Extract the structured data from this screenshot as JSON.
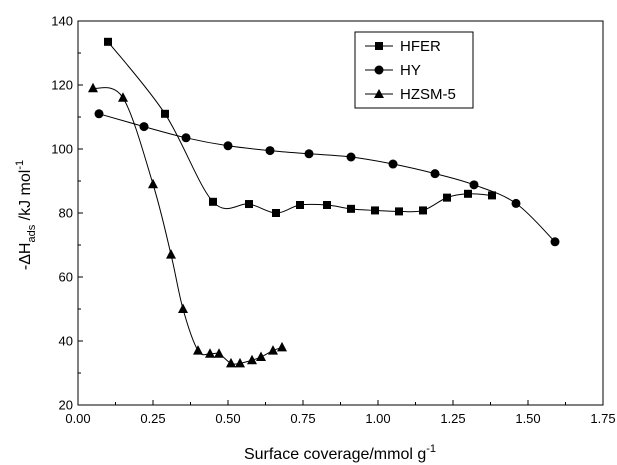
{
  "chart_data": {
    "type": "line",
    "xlabel": "Surface coverage/mmol g",
    "xlabel_sup": "-1",
    "ylabel": "-ΔH",
    "ylabel_sub": "ads",
    "ylabel_unit": " /kJ mol",
    "ylabel_sup": "-1",
    "xlim": [
      0.0,
      1.75
    ],
    "ylim": [
      20,
      140
    ],
    "x_ticks": [
      0.0,
      0.25,
      0.5,
      0.75,
      1.0,
      1.25,
      1.5,
      1.75
    ],
    "x_tick_labels": [
      "0.00",
      "0.25",
      "0.50",
      "0.75",
      "1.00",
      "1.25",
      "1.50",
      "1.75"
    ],
    "y_ticks": [
      20,
      40,
      60,
      80,
      100,
      120,
      140
    ],
    "y_tick_labels": [
      "20",
      "40",
      "60",
      "80",
      "100",
      "120",
      "140"
    ],
    "grid": false,
    "legend_position": "top-right",
    "series": [
      {
        "name": "HFER",
        "marker": "square",
        "x": [
          0.1,
          0.29,
          0.45,
          0.57,
          0.66,
          0.74,
          0.83,
          0.91,
          0.99,
          1.07,
          1.15,
          1.23,
          1.3,
          1.38
        ],
        "y": [
          133.5,
          111,
          83.5,
          82.8,
          80,
          82.5,
          82.5,
          81.3,
          80.8,
          80.5,
          80.8,
          84.8,
          86,
          85.5
        ]
      },
      {
        "name": "HY",
        "marker": "circle",
        "x": [
          0.07,
          0.22,
          0.36,
          0.5,
          0.64,
          0.77,
          0.91,
          1.05,
          1.19,
          1.32,
          1.46,
          1.59
        ],
        "y": [
          111,
          107,
          103.5,
          101,
          99.5,
          98.5,
          97.5,
          95.3,
          92.3,
          88.8,
          83,
          71
        ]
      },
      {
        "name": "HZSM-5",
        "marker": "triangle",
        "x": [
          0.05,
          0.15,
          0.25,
          0.31,
          0.35,
          0.4,
          0.44,
          0.47,
          0.51,
          0.54,
          0.58,
          0.61,
          0.65,
          0.68
        ],
        "y": [
          119,
          116,
          89,
          67,
          50,
          37,
          36,
          36,
          33,
          33,
          34,
          35,
          37,
          38
        ]
      }
    ]
  }
}
